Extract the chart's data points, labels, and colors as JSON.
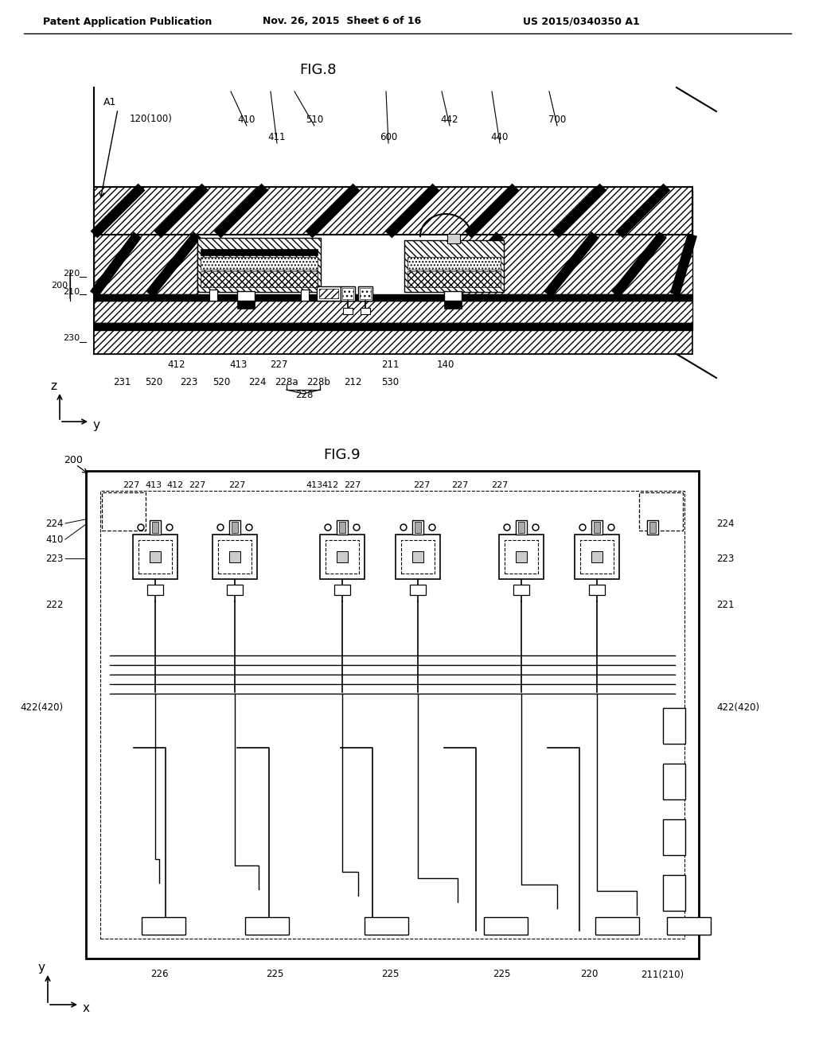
{
  "bg_color": "#ffffff",
  "header_text": "Patent Application Publication",
  "header_date": "Nov. 26, 2015  Sheet 6 of 16",
  "header_patent": "US 2015/0340350 A1",
  "fig8_title": "FIG.8",
  "fig9_title": "FIG.9"
}
